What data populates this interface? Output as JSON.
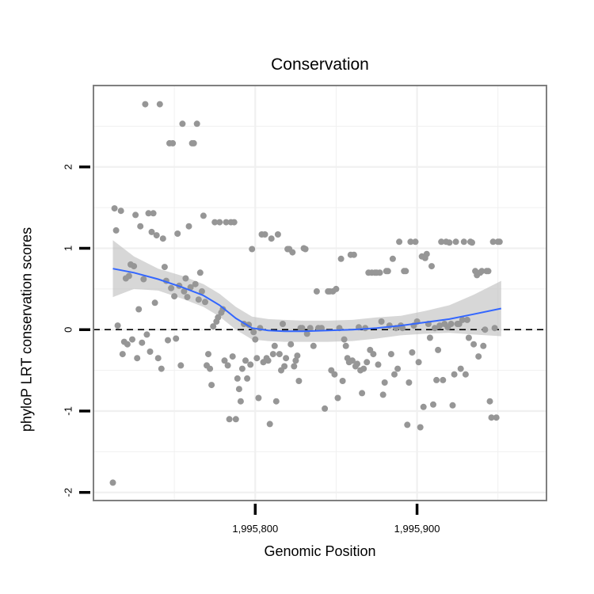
{
  "chart_data": {
    "type": "scatter",
    "title": "Conservation",
    "xlabel": "Genomic Position",
    "ylabel": "phyloP LRT conservation scores",
    "xlim": [
      1995700,
      1995980
    ],
    "ylim": [
      -2.1,
      3.0
    ],
    "x_ticks": [
      1995800,
      1995900
    ],
    "x_tick_labels": [
      "1,995,800",
      "1,995,900"
    ],
    "y_ticks": [
      -2,
      -1,
      0,
      1,
      2
    ],
    "y_tick_labels": [
      "-2",
      "-1",
      "0",
      "1",
      "2"
    ],
    "grid": true,
    "reference_line": {
      "y": 0,
      "style": "dashed"
    },
    "colors": {
      "points": "#969696",
      "smooth": "#3366ff",
      "band": "#bdbdbd",
      "frame": "#7f7f7f",
      "grid": "#f0f0f0"
    },
    "points": [
      [
        1995712,
        -1.88
      ],
      [
        1995713,
        1.49
      ],
      [
        1995714,
        1.22
      ],
      [
        1995715,
        0.05
      ],
      [
        1995717,
        1.46
      ],
      [
        1995718,
        -0.3
      ],
      [
        1995719,
        -0.15
      ],
      [
        1995720,
        0.63
      ],
      [
        1995721,
        -0.18
      ],
      [
        1995722,
        0.66
      ],
      [
        1995723,
        0.8
      ],
      [
        1995724,
        -0.12
      ],
      [
        1995725,
        0.78
      ],
      [
        1995726,
        1.41
      ],
      [
        1995727,
        -0.35
      ],
      [
        1995728,
        0.25
      ],
      [
        1995729,
        1.27
      ],
      [
        1995730,
        -0.16
      ],
      [
        1995731,
        0.62
      ],
      [
        1995732,
        2.77
      ],
      [
        1995733,
        -0.06
      ],
      [
        1995734,
        1.43
      ],
      [
        1995735,
        -0.27
      ],
      [
        1995736,
        1.2
      ],
      [
        1995737,
        1.43
      ],
      [
        1995738,
        0.33
      ],
      [
        1995739,
        1.16
      ],
      [
        1995740,
        -0.35
      ],
      [
        1995741,
        2.77
      ],
      [
        1995742,
        -0.48
      ],
      [
        1995743,
        1.12
      ],
      [
        1995744,
        0.77
      ],
      [
        1995745,
        0.6
      ],
      [
        1995746,
        -0.13
      ],
      [
        1995747,
        2.29
      ],
      [
        1995748,
        0.51
      ],
      [
        1995749,
        2.29
      ],
      [
        1995750,
        0.41
      ],
      [
        1995751,
        -0.11
      ],
      [
        1995752,
        1.18
      ],
      [
        1995753,
        0.54
      ],
      [
        1995754,
        -0.44
      ],
      [
        1995755,
        2.53
      ],
      [
        1995756,
        0.47
      ],
      [
        1995757,
        0.63
      ],
      [
        1995758,
        0.4
      ],
      [
        1995759,
        1.27
      ],
      [
        1995760,
        0.52
      ],
      [
        1995761,
        2.29
      ],
      [
        1995762,
        2.29
      ],
      [
        1995763,
        0.56
      ],
      [
        1995764,
        2.53
      ],
      [
        1995765,
        0.37
      ],
      [
        1995766,
        0.7
      ],
      [
        1995767,
        0.47
      ],
      [
        1995768,
        1.4
      ],
      [
        1995769,
        0.34
      ],
      [
        1995770,
        -0.44
      ],
      [
        1995771,
        -0.3
      ],
      [
        1995772,
        -0.48
      ],
      [
        1995773,
        -0.68
      ],
      [
        1995774,
        0.04
      ],
      [
        1995775,
        1.32
      ],
      [
        1995776,
        0.1
      ],
      [
        1995777,
        0.15
      ],
      [
        1995778,
        1.32
      ],
      [
        1995779,
        0.21
      ],
      [
        1995780,
        0.25
      ],
      [
        1995781,
        -0.38
      ],
      [
        1995782,
        1.32
      ],
      [
        1995783,
        -0.44
      ],
      [
        1995784,
        -1.1
      ],
      [
        1995785,
        1.32
      ],
      [
        1995786,
        -0.33
      ],
      [
        1995787,
        1.32
      ],
      [
        1995788,
        -1.1
      ],
      [
        1995789,
        -0.6
      ],
      [
        1995790,
        -0.73
      ],
      [
        1995791,
        -0.88
      ],
      [
        1995792,
        -0.48
      ],
      [
        1995793,
        0.07
      ],
      [
        1995794,
        -0.38
      ],
      [
        1995795,
        -0.6
      ],
      [
        1995796,
        0.06
      ],
      [
        1995797,
        -0.43
      ],
      [
        1995798,
        0.99
      ],
      [
        1995799,
        -0.03
      ],
      [
        1995800,
        -0.12
      ],
      [
        1995801,
        -0.35
      ],
      [
        1995802,
        -0.84
      ],
      [
        1995803,
        0.02
      ],
      [
        1995804,
        1.17
      ],
      [
        1995805,
        -0.4
      ],
      [
        1995806,
        1.17
      ],
      [
        1995807,
        -0.35
      ],
      [
        1995808,
        -0.38
      ],
      [
        1995809,
        -1.16
      ],
      [
        1995810,
        1.12
      ],
      [
        1995811,
        -0.3
      ],
      [
        1995812,
        -0.2
      ],
      [
        1995813,
        -0.88
      ],
      [
        1995814,
        1.17
      ],
      [
        1995815,
        -0.3
      ],
      [
        1995816,
        -0.5
      ],
      [
        1995817,
        0.07
      ],
      [
        1995818,
        -0.45
      ],
      [
        1995819,
        -0.35
      ],
      [
        1995820,
        0.99
      ],
      [
        1995821,
        0.99
      ],
      [
        1995822,
        -0.18
      ],
      [
        1995823,
        0.95
      ],
      [
        1995824,
        -0.45
      ],
      [
        1995825,
        -0.38
      ],
      [
        1995826,
        -0.32
      ],
      [
        1995827,
        -0.63
      ],
      [
        1995828,
        0.02
      ],
      [
        1995829,
        0.02
      ],
      [
        1995830,
        1.0
      ],
      [
        1995831,
        0.99
      ],
      [
        1995832,
        -0.05
      ],
      [
        1995834,
        0.02
      ],
      [
        1995836,
        -0.2
      ],
      [
        1995838,
        0.47
      ],
      [
        1995839,
        0.02
      ],
      [
        1995841,
        0.02
      ],
      [
        1995843,
        -0.97
      ],
      [
        1995845,
        0.47
      ],
      [
        1995846,
        0.47
      ],
      [
        1995847,
        -0.5
      ],
      [
        1995848,
        0.47
      ],
      [
        1995849,
        -0.55
      ],
      [
        1995850,
        0.5
      ],
      [
        1995851,
        -0.84
      ],
      [
        1995852,
        0.02
      ],
      [
        1995853,
        0.87
      ],
      [
        1995854,
        -0.63
      ],
      [
        1995855,
        -0.12
      ],
      [
        1995856,
        -0.2
      ],
      [
        1995857,
        -0.35
      ],
      [
        1995858,
        -0.4
      ],
      [
        1995859,
        0.92
      ],
      [
        1995860,
        -0.38
      ],
      [
        1995861,
        0.92
      ],
      [
        1995862,
        -0.45
      ],
      [
        1995863,
        -0.42
      ],
      [
        1995864,
        0.03
      ],
      [
        1995865,
        -0.5
      ],
      [
        1995866,
        -0.78
      ],
      [
        1995867,
        -0.48
      ],
      [
        1995868,
        0.02
      ],
      [
        1995869,
        -0.4
      ],
      [
        1995870,
        0.7
      ],
      [
        1995871,
        -0.25
      ],
      [
        1995872,
        0.7
      ],
      [
        1995873,
        -0.3
      ],
      [
        1995874,
        0.7
      ],
      [
        1995875,
        0.7
      ],
      [
        1995876,
        -0.43
      ],
      [
        1995877,
        0.7
      ],
      [
        1995878,
        0.1
      ],
      [
        1995879,
        -0.8
      ],
      [
        1995880,
        -0.65
      ],
      [
        1995881,
        0.72
      ],
      [
        1995882,
        0.72
      ],
      [
        1995883,
        0.05
      ],
      [
        1995884,
        -0.3
      ],
      [
        1995885,
        0.87
      ],
      [
        1995886,
        -0.55
      ],
      [
        1995887,
        0.02
      ],
      [
        1995888,
        -0.48
      ],
      [
        1995889,
        1.08
      ],
      [
        1995890,
        0.05
      ],
      [
        1995891,
        0.02
      ],
      [
        1995892,
        0.72
      ],
      [
        1995893,
        0.72
      ],
      [
        1995894,
        -1.17
      ],
      [
        1995895,
        -0.65
      ],
      [
        1995896,
        1.08
      ],
      [
        1995897,
        -0.28
      ],
      [
        1995898,
        0.05
      ],
      [
        1995899,
        1.08
      ],
      [
        1995900,
        0.1
      ],
      [
        1995901,
        -0.4
      ],
      [
        1995902,
        -1.2
      ],
      [
        1995903,
        0.9
      ],
      [
        1995904,
        -0.95
      ],
      [
        1995905,
        0.88
      ],
      [
        1995906,
        0.93
      ],
      [
        1995907,
        0.07
      ],
      [
        1995908,
        -0.1
      ],
      [
        1995909,
        0.78
      ],
      [
        1995910,
        -0.92
      ],
      [
        1995911,
        0.02
      ],
      [
        1995912,
        -0.62
      ],
      [
        1995913,
        -0.25
      ],
      [
        1995914,
        0.05
      ],
      [
        1995915,
        1.08
      ],
      [
        1995916,
        -0.62
      ],
      [
        1995917,
        0.07
      ],
      [
        1995918,
        1.08
      ],
      [
        1995919,
        0.03
      ],
      [
        1995920,
        1.07
      ],
      [
        1995921,
        0.07
      ],
      [
        1995922,
        -0.93
      ],
      [
        1995923,
        -0.55
      ],
      [
        1995924,
        1.08
      ],
      [
        1995925,
        0.07
      ],
      [
        1995926,
        0.07
      ],
      [
        1995927,
        -0.48
      ],
      [
        1995928,
        0.12
      ],
      [
        1995929,
        1.08
      ],
      [
        1995930,
        -0.55
      ],
      [
        1995931,
        0.12
      ],
      [
        1995932,
        -0.1
      ],
      [
        1995933,
        1.08
      ],
      [
        1995934,
        1.07
      ],
      [
        1995935,
        -0.18
      ],
      [
        1995936,
        0.72
      ],
      [
        1995937,
        0.67
      ],
      [
        1995938,
        -0.33
      ],
      [
        1995939,
        0.7
      ],
      [
        1995940,
        0.72
      ],
      [
        1995941,
        -0.2
      ],
      [
        1995942,
        0.0
      ],
      [
        1995943,
        0.72
      ],
      [
        1995944,
        0.72
      ],
      [
        1995945,
        -0.88
      ],
      [
        1995946,
        -1.08
      ],
      [
        1995947,
        1.08
      ],
      [
        1995948,
        0.02
      ],
      [
        1995949,
        -1.08
      ],
      [
        1995950,
        1.08
      ],
      [
        1995951,
        1.08
      ]
    ],
    "smooth_fit": {
      "x": [
        1995712,
        1995725,
        1995740,
        1995755,
        1995768,
        1995778,
        1995788,
        1995798,
        1995808,
        1995818,
        1995830,
        1995845,
        1995860,
        1995875,
        1995890,
        1995905,
        1995920,
        1995935,
        1995952
      ],
      "y": [
        0.75,
        0.7,
        0.62,
        0.52,
        0.42,
        0.3,
        0.14,
        0.02,
        -0.01,
        -0.02,
        -0.02,
        -0.01,
        0.0,
        0.02,
        0.05,
        0.09,
        0.13,
        0.19,
        0.26
      ],
      "lower": [
        0.4,
        0.5,
        0.48,
        0.38,
        0.28,
        0.16,
        0.0,
        -0.12,
        -0.14,
        -0.15,
        -0.15,
        -0.15,
        -0.14,
        -0.11,
        -0.07,
        -0.05,
        -0.04,
        -0.06,
        -0.08
      ],
      "upper": [
        1.1,
        0.9,
        0.75,
        0.66,
        0.56,
        0.44,
        0.28,
        0.16,
        0.13,
        0.12,
        0.11,
        0.11,
        0.12,
        0.15,
        0.17,
        0.23,
        0.3,
        0.43,
        0.6
      ]
    }
  }
}
